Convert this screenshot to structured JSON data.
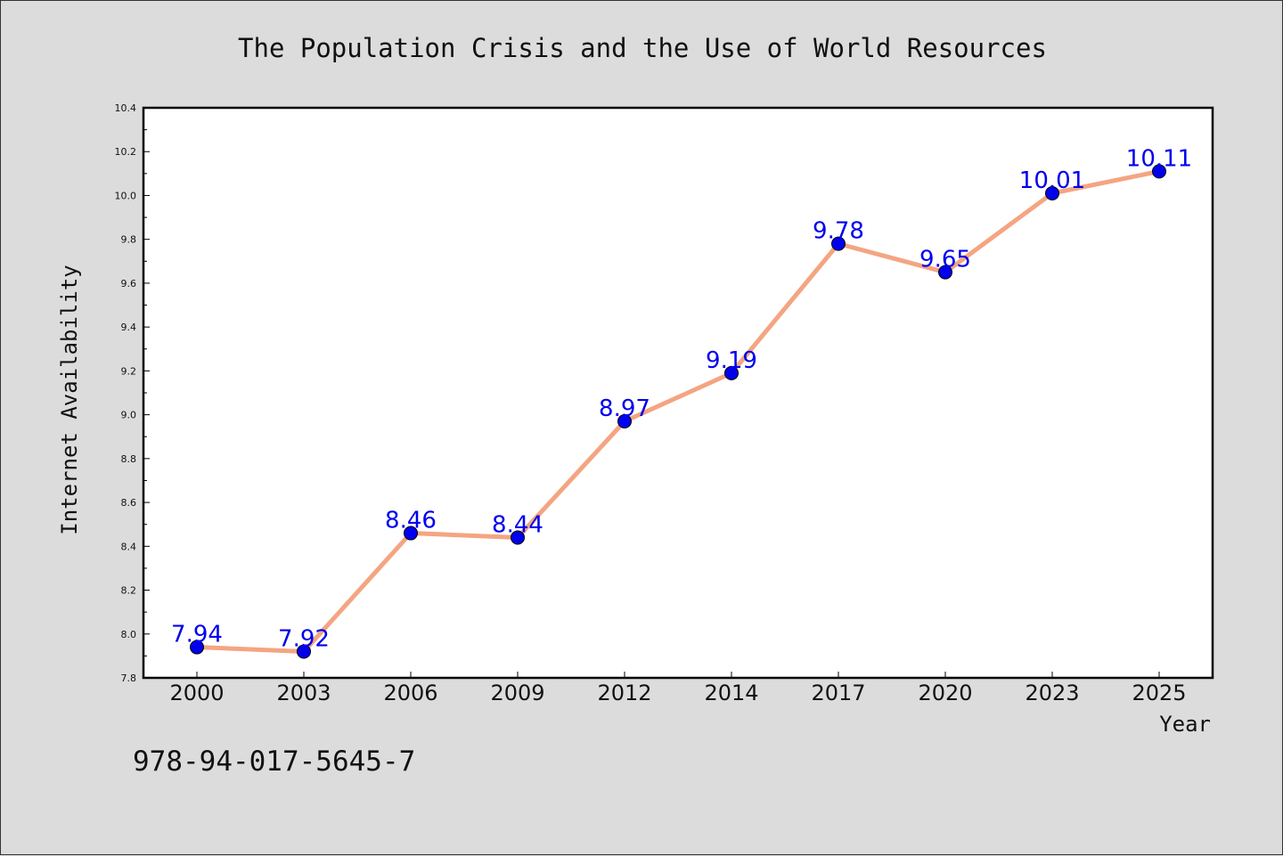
{
  "chart_data": {
    "type": "line",
    "title": "The Population Crisis and the Use of World Resources",
    "xlabel": "Year",
    "ylabel": "Internet Availability",
    "categories": [
      "2000",
      "2003",
      "2006",
      "2009",
      "2012",
      "2014",
      "2017",
      "2020",
      "2023",
      "2025"
    ],
    "series": [
      {
        "values": [
          7.94,
          7.92,
          8.46,
          8.44,
          8.97,
          9.19,
          9.78,
          9.65,
          10.01,
          10.11
        ],
        "labels": [
          "7.94",
          "7.92",
          "8.46",
          "8.44",
          "8.97",
          "9.19",
          "9.78",
          "9.65",
          "10.01",
          "10.11"
        ],
        "line_color": "#f4a582",
        "marker_color": "#0000ee"
      }
    ],
    "ylim": [
      7.8,
      10.4
    ],
    "yticks": [
      "7.8",
      "8.0",
      "8.2",
      "8.4",
      "8.6",
      "8.8",
      "9.0",
      "9.2",
      "9.4",
      "9.6",
      "9.8",
      "10.0",
      "10.2",
      "10.4"
    ],
    "grid": false,
    "legend": "none"
  },
  "footer": {
    "isbn": "978-94-017-5645-7"
  },
  "colors": {
    "background": "#dcdcdc",
    "plot_background": "#ffffff",
    "line": "#f4a582",
    "marker": "#0000ee",
    "data_label": "#0000ee"
  }
}
